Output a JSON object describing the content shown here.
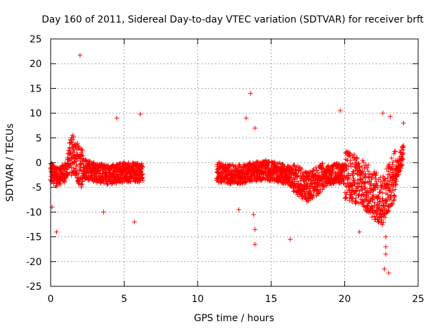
{
  "chart_data": {
    "type": "scatter",
    "title": "Day 160 of 2011, Sidereal Day-to-day VTEC variation (SDTVAR) for receiver brft",
    "xlabel": "GPS time / hours",
    "ylabel": "SDTVAR / TECUs",
    "xlim": [
      0,
      25
    ],
    "ylim": [
      -25,
      25
    ],
    "xticks": [
      0,
      5,
      10,
      15,
      20,
      25
    ],
    "yticks": [
      -25,
      -20,
      -15,
      -10,
      -5,
      0,
      5,
      10,
      15,
      20,
      25
    ],
    "grid": true,
    "marker": "+",
    "color": "#ff0000",
    "series": [
      {
        "name": "SDTVAR",
        "segments": [
          {
            "x_start": 0.0,
            "x_end": 6.3
          },
          {
            "x_start": 11.3,
            "x_end": 24.0
          }
        ],
        "band_points": [
          [
            0.0,
            -2.0
          ],
          [
            0.5,
            -3.0
          ],
          [
            1.0,
            -2.0
          ],
          [
            1.5,
            2.0
          ],
          [
            2.0,
            -1.0
          ],
          [
            3.0,
            -2.0
          ],
          [
            4.0,
            -2.5
          ],
          [
            5.0,
            -2.0
          ],
          [
            6.0,
            -2.0
          ],
          [
            11.5,
            -2.0
          ],
          [
            12.5,
            -2.5
          ],
          [
            13.5,
            -2.0
          ],
          [
            14.5,
            -1.5
          ],
          [
            15.5,
            -2.0
          ],
          [
            16.5,
            -3.0
          ],
          [
            17.5,
            -5.0
          ],
          [
            18.5,
            -3.0
          ],
          [
            19.5,
            -2.0
          ],
          [
            20.5,
            -3.0
          ],
          [
            21.5,
            -5.0
          ],
          [
            22.5,
            -8.0
          ],
          [
            23.5,
            -2.0
          ],
          [
            24.0,
            2.0
          ]
        ],
        "outliers": [
          [
            2.0,
            21.7
          ],
          [
            13.6,
            14.0
          ],
          [
            19.7,
            10.5
          ],
          [
            22.6,
            10.0
          ],
          [
            6.1,
            9.8
          ],
          [
            4.5,
            9.0
          ],
          [
            13.3,
            9.0
          ],
          [
            23.1,
            9.3
          ],
          [
            24.0,
            8.0
          ],
          [
            13.9,
            7.0
          ],
          [
            12.8,
            -9.5
          ],
          [
            13.8,
            -10.5
          ],
          [
            13.9,
            -13.5
          ],
          [
            13.9,
            -16.5
          ],
          [
            16.3,
            -15.5
          ],
          [
            21.0,
            -14.0
          ],
          [
            0.4,
            -14.0
          ],
          [
            22.8,
            -15.0
          ],
          [
            22.8,
            -17.0
          ],
          [
            22.8,
            -18.5
          ],
          [
            22.7,
            -21.5
          ],
          [
            23.0,
            -22.3
          ],
          [
            5.7,
            -12.0
          ],
          [
            3.6,
            -10.0
          ],
          [
            0.1,
            -9.0
          ]
        ]
      }
    ]
  }
}
